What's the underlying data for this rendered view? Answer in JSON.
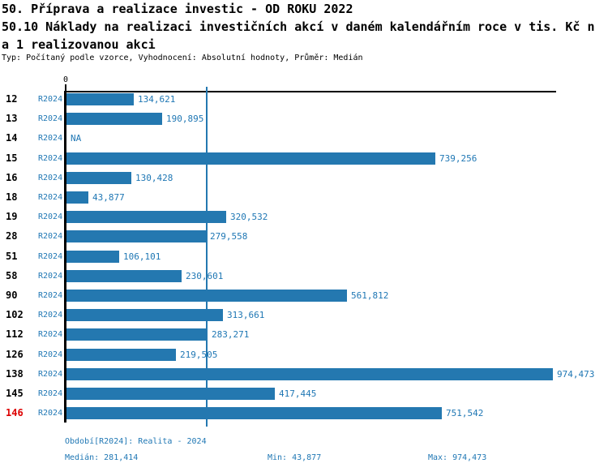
{
  "header": {
    "title_line1": "50. Příprava a realizace investic - OD ROKU 2022",
    "title_line2": "50.10 Náklady na realizaci investičních akcí v daném kalendářním roce v tis. Kč n",
    "title_line3": "a 1 realizovanou akci",
    "subtitle": "Typ: Počítaný podle vzorce, Vyhodnocení: Absolutní hodnoty, Průměr: Medián"
  },
  "chart_data": {
    "type": "bar",
    "orientation": "horizontal",
    "title": "50.10 Náklady na realizaci investičních akcí v daném kalendářním roce v tis. Kč na 1 realizovanou akci",
    "x_axis": {
      "zero_label": "0",
      "tick_values_shown": [
        0
      ],
      "approx_max": 974473
    },
    "grid": false,
    "legend": false,
    "series_label": "R2024",
    "categories": [
      "12",
      "13",
      "14",
      "15",
      "16",
      "18",
      "19",
      "28",
      "51",
      "58",
      "90",
      "102",
      "112",
      "126",
      "138",
      "145",
      "146"
    ],
    "rows": [
      {
        "id": "12",
        "period": "R2024",
        "value": 134621,
        "label": "134,621",
        "highlighted": false
      },
      {
        "id": "13",
        "period": "R2024",
        "value": 190895,
        "label": "190,895",
        "highlighted": false
      },
      {
        "id": "14",
        "period": "R2024",
        "value": null,
        "label": "NA",
        "highlighted": false
      },
      {
        "id": "15",
        "period": "R2024",
        "value": 739256,
        "label": "739,256",
        "highlighted": false
      },
      {
        "id": "16",
        "period": "R2024",
        "value": 130428,
        "label": "130,428",
        "highlighted": false
      },
      {
        "id": "18",
        "period": "R2024",
        "value": 43877,
        "label": "43,877",
        "highlighted": false
      },
      {
        "id": "19",
        "period": "R2024",
        "value": 320532,
        "label": "320,532",
        "highlighted": false
      },
      {
        "id": "28",
        "period": "R2024",
        "value": 279558,
        "label": "279,558",
        "highlighted": false
      },
      {
        "id": "51",
        "period": "R2024",
        "value": 106101,
        "label": "106,101",
        "highlighted": false
      },
      {
        "id": "58",
        "period": "R2024",
        "value": 230601,
        "label": "230,601",
        "highlighted": false
      },
      {
        "id": "90",
        "period": "R2024",
        "value": 561812,
        "label": "561,812",
        "highlighted": false
      },
      {
        "id": "102",
        "period": "R2024",
        "value": 313661,
        "label": "313,661",
        "highlighted": false
      },
      {
        "id": "112",
        "period": "R2024",
        "value": 283271,
        "label": "283,271",
        "highlighted": false
      },
      {
        "id": "126",
        "period": "R2024",
        "value": 219505,
        "label": "219,505",
        "highlighted": false
      },
      {
        "id": "138",
        "period": "R2024",
        "value": 974473,
        "label": "974,473",
        "highlighted": false
      },
      {
        "id": "145",
        "period": "R2024",
        "value": 417445,
        "label": "417,445",
        "highlighted": false
      },
      {
        "id": "146",
        "period": "R2024",
        "value": 751542,
        "label": "751,542",
        "highlighted": true
      }
    ],
    "median_line_value": 281414
  },
  "footer": {
    "period_info": "Období[R2024]: Realita - 2024",
    "median": "Medián: 281,414",
    "min": "Min: 43,877",
    "max": "Max: 974,473"
  },
  "colors": {
    "bar": "#2478b0",
    "accent_text": "#1f77b4",
    "median_line": "#2478b0",
    "highlight_row": "#dd0000",
    "axis": "#000000"
  }
}
